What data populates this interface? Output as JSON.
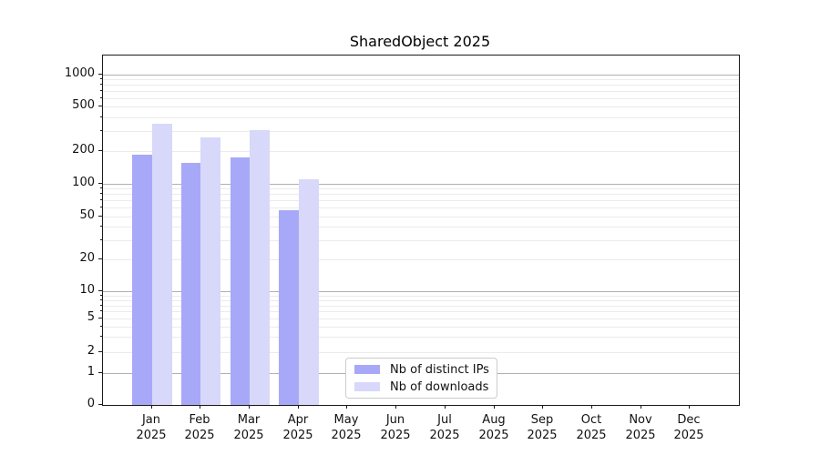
{
  "title": "SharedObject 2025",
  "chart_data": {
    "type": "bar",
    "title": "SharedObject 2025",
    "categories": [
      "Jan",
      "Feb",
      "Mar",
      "Apr",
      "May",
      "Jun",
      "Jul",
      "Aug",
      "Sep",
      "Oct",
      "Nov",
      "Dec"
    ],
    "x_year_label": "2025",
    "series": [
      {
        "name": "Nb of distinct IPs",
        "key": "distinct-ips",
        "color": "#a8a8f8",
        "values": [
          185,
          155,
          175,
          57,
          null,
          null,
          null,
          null,
          null,
          null,
          null,
          null
        ]
      },
      {
        "name": "Nb of downloads",
        "key": "downloads",
        "color": "#d8d8fa",
        "values": [
          350,
          265,
          310,
          110,
          null,
          null,
          null,
          null,
          null,
          null,
          null,
          null
        ]
      }
    ],
    "yticks": [
      0,
      1,
      2,
      5,
      10,
      20,
      50,
      100,
      200,
      500,
      1000
    ],
    "y_scale": "symlog",
    "ylim": [
      0,
      1500
    ],
    "xlabel": "",
    "ylabel": "",
    "grid": "horizontal major at 1,10,100,1000 with log minors",
    "legend_position": "bottom-center-inside"
  },
  "colors": {
    "major_grid": "#b0b0b0",
    "minor_grid": "#ebebeb",
    "axis": "#1a1a1a",
    "background": "#ffffff"
  }
}
